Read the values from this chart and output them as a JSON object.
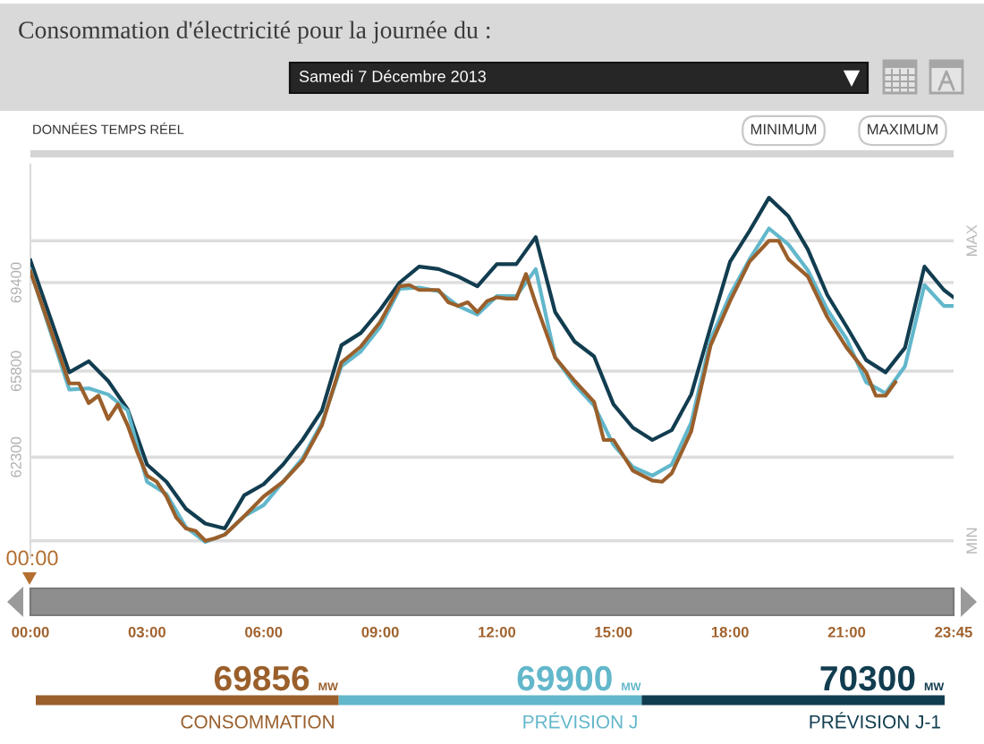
{
  "chart_data": {
    "type": "line",
    "title": "Consommation d'électricité pour la journée du :",
    "subtitle": "Samedi 7 Décembre 2013",
    "annotations": [
      "DONNÉES TEMPS RÉEL",
      "MINIMUM",
      "MAXIMUM",
      "00:00",
      "69856",
      "MW",
      "69900",
      "MW",
      "70300",
      "MW"
    ],
    "xlim": [
      0,
      23.75
    ],
    "xticks": [
      {
        "value": 0,
        "label": "00:00"
      },
      {
        "value": 3,
        "label": "03:00"
      },
      {
        "value": 6,
        "label": "06:00"
      },
      {
        "value": 9,
        "label": "09:00"
      },
      {
        "value": 12,
        "label": "12:00"
      },
      {
        "value": 15,
        "label": "15:00"
      },
      {
        "value": 18,
        "label": "18:00"
      },
      {
        "value": 21,
        "label": "21:00"
      },
      {
        "value": 23.75,
        "label": "23:45"
      }
    ],
    "ylim": [
      58200,
      74200
    ],
    "yticks": [
      62300,
      65800,
      69400
    ],
    "grid": "y",
    "legend": "bottom",
    "line_style": "solid",
    "ref_lines": [
      {
        "axis": "y",
        "value": 71100,
        "label": "MAX",
        "color": "#dddddd"
      },
      {
        "axis": "y",
        "value": 58900,
        "label": "MIN",
        "color": "#dddddd"
      }
    ],
    "series": [
      {
        "name": "CONSOMMATION",
        "color": "#9a5f2b",
        "x": [
          0,
          1,
          1.25,
          1.5,
          1.75,
          2,
          2.25,
          2.5,
          2.75,
          3,
          3.25,
          3.5,
          3.75,
          4,
          4.25,
          4.5,
          4.75,
          5,
          5.5,
          6,
          6.5,
          7,
          7.5,
          8,
          8.5,
          9,
          9.5,
          9.75,
          10,
          10.5,
          10.75,
          11,
          11.25,
          11.5,
          11.75,
          12,
          12.25,
          12.5,
          12.75,
          13,
          13.5,
          14,
          14.5,
          14.75,
          15,
          15.5,
          16,
          16.25,
          16.5,
          17,
          17.5,
          18,
          18.5,
          19,
          19.25,
          19.5,
          20,
          20.5,
          21,
          21.25,
          21.5,
          21.75,
          22,
          22.25
        ],
        "values": [
          69856,
          65300,
          65300,
          64500,
          64800,
          63850,
          64450,
          63600,
          62500,
          61550,
          61300,
          60700,
          59850,
          59400,
          59300,
          58900,
          59000,
          59150,
          59900,
          60700,
          61300,
          62150,
          63600,
          66150,
          66800,
          67800,
          69250,
          69300,
          69100,
          69100,
          68600,
          68450,
          68600,
          68200,
          68650,
          68800,
          68750,
          68750,
          69750,
          68550,
          66350,
          65400,
          64550,
          63000,
          63000,
          61750,
          61350,
          61300,
          61650,
          63350,
          66850,
          68650,
          70250,
          71100,
          71100,
          70350,
          69650,
          68000,
          66750,
          66250,
          65750,
          64800,
          64800,
          65350
        ]
      },
      {
        "name": "PRÉVISION J",
        "color": "#62b7cb",
        "x": [
          0,
          1,
          1.5,
          2,
          2.5,
          3,
          3.5,
          4,
          4.5,
          5,
          5.5,
          6,
          6.5,
          7,
          7.5,
          8,
          8.5,
          9,
          9.5,
          10,
          10.5,
          11,
          11.5,
          12,
          12.5,
          13,
          13.5,
          14,
          14.5,
          15,
          15.5,
          16,
          16.5,
          17,
          17.5,
          18,
          18.5,
          19,
          19.5,
          20,
          20.5,
          21,
          21.5,
          22,
          22.5,
          23,
          23.5,
          23.75
        ],
        "values": [
          69900,
          65050,
          65100,
          64850,
          64200,
          61300,
          60800,
          59450,
          58850,
          59150,
          59900,
          60350,
          61300,
          62250,
          63700,
          66000,
          66600,
          67600,
          69150,
          69200,
          69050,
          68450,
          68100,
          68850,
          68850,
          69950,
          66350,
          65250,
          64400,
          62800,
          61900,
          61550,
          62000,
          63700,
          67100,
          68900,
          70350,
          71600,
          70950,
          69900,
          68300,
          67100,
          65350,
          64900,
          66000,
          69300,
          68450,
          68450
        ]
      },
      {
        "name": "PRÉVISION J-1",
        "color": "#123d50",
        "x": [
          0,
          1,
          1.5,
          2,
          2.5,
          3,
          3.5,
          4,
          4.5,
          5,
          5.5,
          6,
          6.5,
          7,
          7.5,
          8,
          8.5,
          9,
          9.5,
          10,
          10.5,
          11,
          11.5,
          12,
          12.5,
          13,
          13.5,
          14,
          14.5,
          15,
          15.5,
          16,
          16.5,
          17,
          17.5,
          18,
          18.5,
          19,
          19.5,
          20,
          20.5,
          21,
          21.5,
          22,
          22.5,
          23,
          23.5,
          23.75
        ],
        "values": [
          70300,
          65750,
          66200,
          65400,
          64250,
          62000,
          61300,
          60200,
          59600,
          59400,
          60750,
          61200,
          62000,
          63000,
          64200,
          66850,
          67350,
          68300,
          69400,
          70050,
          69950,
          69650,
          69250,
          70150,
          70150,
          71250,
          68200,
          67000,
          66400,
          64450,
          63500,
          63000,
          63400,
          64850,
          67600,
          70250,
          71500,
          72850,
          72100,
          70750,
          68900,
          67600,
          66250,
          65750,
          66750,
          70050,
          69100,
          68800
        ]
      }
    ]
  }
}
